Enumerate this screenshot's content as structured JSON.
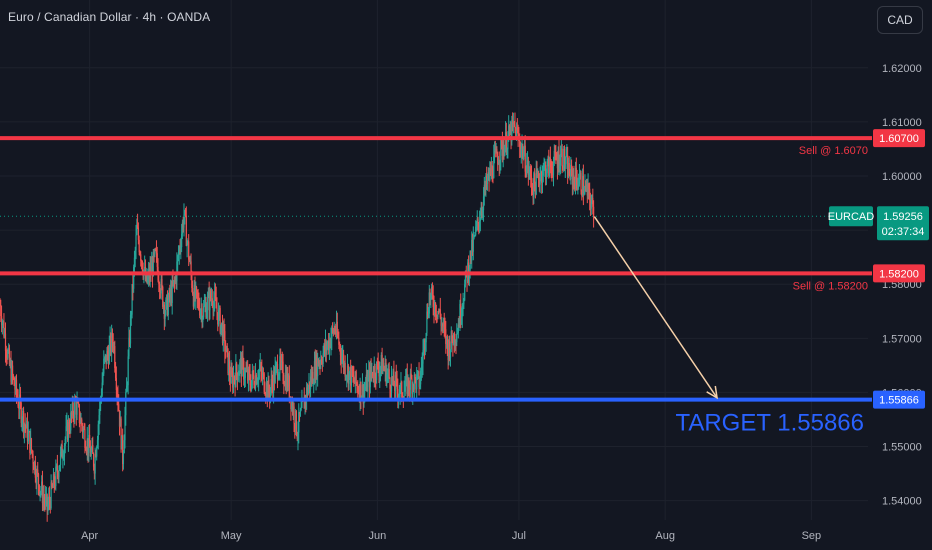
{
  "header": {
    "title": "Euro / Canadian Dollar · 4h · OANDA",
    "currency": "CAD"
  },
  "colors": {
    "background": "#131722",
    "up_candle": "#26a69a",
    "down_candle": "#ef5350",
    "resistance": "#f23645",
    "target": "#2962ff",
    "arrow": "#f5d0a9",
    "price_tag": "#089981"
  },
  "chart_data": {
    "type": "candlestick",
    "symbol": "EURCAD",
    "ylim": [
      1.5355,
      1.6316
    ],
    "y_ticks": [
      "1.54000",
      "1.55000",
      "1.56000",
      "1.57000",
      "1.58000",
      "1.59000",
      "1.60000",
      "1.61000",
      "1.62000"
    ],
    "x_ticks": [
      "Apr",
      "May",
      "Jun",
      "Jul",
      "Aug",
      "Sep"
    ],
    "current_price": {
      "symbol": "EURCAD",
      "value": "1.59256",
      "countdown": "02:37:34"
    },
    "price_path": [
      [
        "2025-03-13",
        1.5762
      ],
      [
        "2025-03-15",
        1.565
      ],
      [
        "2025-03-17",
        1.558
      ],
      [
        "2025-03-19",
        1.552
      ],
      [
        "2025-03-21",
        1.544
      ],
      [
        "2025-03-23",
        1.5385
      ],
      [
        "2025-03-25",
        1.545
      ],
      [
        "2025-03-27",
        1.552
      ],
      [
        "2025-03-29",
        1.558
      ],
      [
        "2025-03-31",
        1.552
      ],
      [
        "2025-04-02",
        1.547
      ],
      [
        "2025-04-04",
        1.565
      ],
      [
        "2025-04-06",
        1.57
      ],
      [
        "2025-04-08",
        1.548
      ],
      [
        "2025-04-10",
        1.578
      ],
      [
        "2025-04-11",
        1.59
      ],
      [
        "2025-04-13",
        1.58
      ],
      [
        "2025-04-15",
        1.585
      ],
      [
        "2025-04-17",
        1.575
      ],
      [
        "2025-04-19",
        1.58
      ],
      [
        "2025-04-21",
        1.593
      ],
      [
        "2025-04-23",
        1.578
      ],
      [
        "2025-04-25",
        1.575
      ],
      [
        "2025-04-27",
        1.578
      ],
      [
        "2025-04-29",
        1.572
      ],
      [
        "2025-05-01",
        1.562
      ],
      [
        "2025-05-03",
        1.565
      ],
      [
        "2025-05-05",
        1.562
      ],
      [
        "2025-05-07",
        1.564
      ],
      [
        "2025-05-09",
        1.56
      ],
      [
        "2025-05-11",
        1.565
      ],
      [
        "2025-05-13",
        1.562
      ],
      [
        "2025-05-15",
        1.553
      ],
      [
        "2025-05-17",
        1.56
      ],
      [
        "2025-05-19",
        1.565
      ],
      [
        "2025-05-21",
        1.568
      ],
      [
        "2025-05-23",
        1.572
      ],
      [
        "2025-05-25",
        1.565
      ],
      [
        "2025-05-27",
        1.562
      ],
      [
        "2025-05-29",
        1.56
      ],
      [
        "2025-05-31",
        1.564
      ],
      [
        "2025-06-02",
        1.565
      ],
      [
        "2025-06-04",
        1.562
      ],
      [
        "2025-06-06",
        1.56
      ],
      [
        "2025-06-08",
        1.562
      ],
      [
        "2025-06-10",
        1.562
      ],
      [
        "2025-06-12",
        1.578
      ],
      [
        "2025-06-14",
        1.575
      ],
      [
        "2025-06-16",
        1.568
      ],
      [
        "2025-06-18",
        1.572
      ],
      [
        "2025-06-20",
        1.582
      ],
      [
        "2025-06-22",
        1.59
      ],
      [
        "2025-06-24",
        1.598
      ],
      [
        "2025-06-26",
        1.603
      ],
      [
        "2025-06-28",
        1.606
      ],
      [
        "2025-06-30",
        1.609
      ],
      [
        "2025-07-02",
        1.604
      ],
      [
        "2025-07-04",
        1.598
      ],
      [
        "2025-07-06",
        1.601
      ],
      [
        "2025-07-08",
        1.602
      ],
      [
        "2025-07-10",
        1.604
      ],
      [
        "2025-07-12",
        1.6
      ],
      [
        "2025-07-14",
        1.599
      ],
      [
        "2025-07-16",
        1.596
      ],
      [
        "2025-07-17",
        1.5926
      ]
    ],
    "x_range": [
      "2025-03-13",
      "2025-09-13"
    ],
    "annotations": [
      {
        "kind": "horizontal-line",
        "price": 1.607,
        "axis_label": "1.60700",
        "text": "Sell @ 1.6070",
        "color": "#f23645"
      },
      {
        "kind": "horizontal-line",
        "price": 1.582,
        "axis_label": "1.58200",
        "text": "Sell @ 1.58200",
        "color": "#f23645"
      },
      {
        "kind": "horizontal-line",
        "price": 1.55866,
        "axis_label": "1.55866",
        "text": "TARGET 1.55866",
        "color": "#2962ff"
      },
      {
        "kind": "arrow",
        "from": [
          "2025-07-17",
          1.5925
        ],
        "to": [
          "2025-08-12",
          1.559
        ],
        "color": "#f5d0a9"
      }
    ],
    "grid": true
  }
}
